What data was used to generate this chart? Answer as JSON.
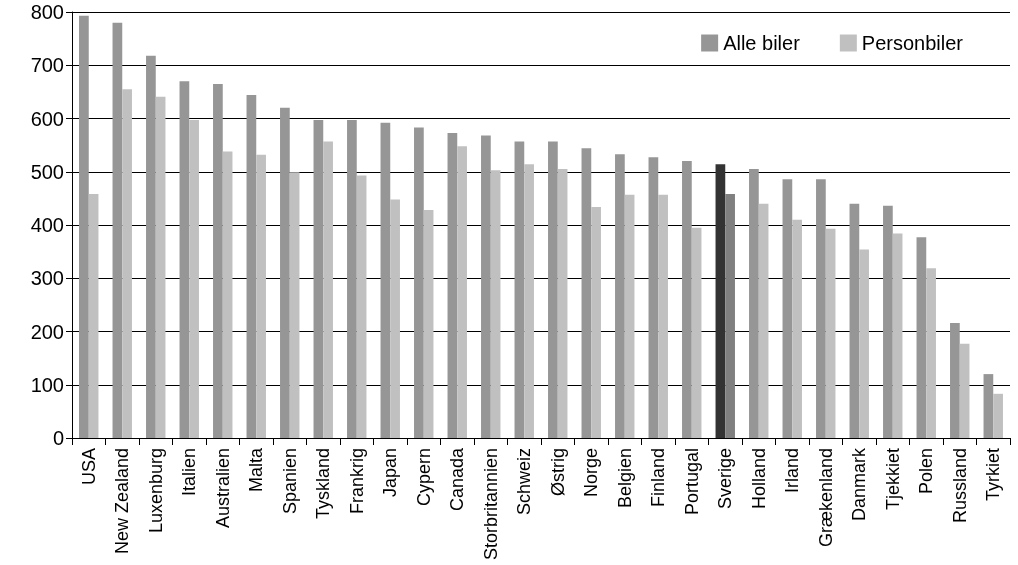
{
  "chart_data": {
    "type": "bar",
    "categories": [
      "USA",
      "New Zealand",
      "Luxenburg",
      "Italien",
      "Australien",
      "Malta",
      "Spanien",
      "Tyskland",
      "Frankrig",
      "Japan",
      "Cypern",
      "Canada",
      "Storbritannien",
      "Schweiz",
      "Østrig",
      "Norge",
      "Belgien",
      "Finland",
      "Portugal",
      "Sverige",
      "Holland",
      "Irland",
      "Grækenland",
      "Danmark",
      "Tjekkiet",
      "Polen",
      "Russland",
      "Tyrkiet"
    ],
    "series": [
      {
        "name": "Alle biler",
        "color": "#969696",
        "colors": [
          "#969696",
          "#969696",
          "#969696",
          "#969696",
          "#969696",
          "#969696",
          "#969696",
          "#969696",
          "#969696",
          "#969696",
          "#969696",
          "#969696",
          "#969696",
          "#969696",
          "#969696",
          "#969696",
          "#969696",
          "#969696",
          "#969696",
          "#333333",
          "#969696",
          "#969696",
          "#969696",
          "#969696",
          "#969696",
          "#969696",
          "#969696",
          "#969696"
        ],
        "values": [
          793,
          780,
          718,
          670,
          665,
          644,
          620,
          597,
          597,
          592,
          583,
          573,
          568,
          557,
          557,
          544,
          533,
          527,
          520,
          514,
          505,
          486,
          486,
          440,
          436,
          377,
          216,
          120
        ]
      },
      {
        "name": "Personbiler",
        "color": "#c0c0c0",
        "colors": [
          "#c0c0c0",
          "#c0c0c0",
          "#c0c0c0",
          "#c0c0c0",
          "#c0c0c0",
          "#c0c0c0",
          "#c0c0c0",
          "#c0c0c0",
          "#c0c0c0",
          "#c0c0c0",
          "#c0c0c0",
          "#c0c0c0",
          "#c0c0c0",
          "#c0c0c0",
          "#c0c0c0",
          "#c0c0c0",
          "#c0c0c0",
          "#c0c0c0",
          "#c0c0c0",
          "#808080",
          "#c0c0c0",
          "#c0c0c0",
          "#c0c0c0",
          "#c0c0c0",
          "#c0c0c0",
          "#c0c0c0",
          "#c0c0c0",
          "#c0c0c0"
        ],
        "values": [
          458,
          655,
          641,
          597,
          538,
          532,
          499,
          557,
          493,
          448,
          428,
          548,
          503,
          514,
          505,
          434,
          457,
          457,
          395,
          458,
          440,
          410,
          393,
          354,
          384,
          319,
          177,
          83
        ]
      }
    ],
    "ylim": [
      0,
      800
    ],
    "yticks": [
      0,
      100,
      200,
      300,
      400,
      500,
      600,
      700,
      800
    ],
    "grid": "y",
    "legend": "top right"
  }
}
